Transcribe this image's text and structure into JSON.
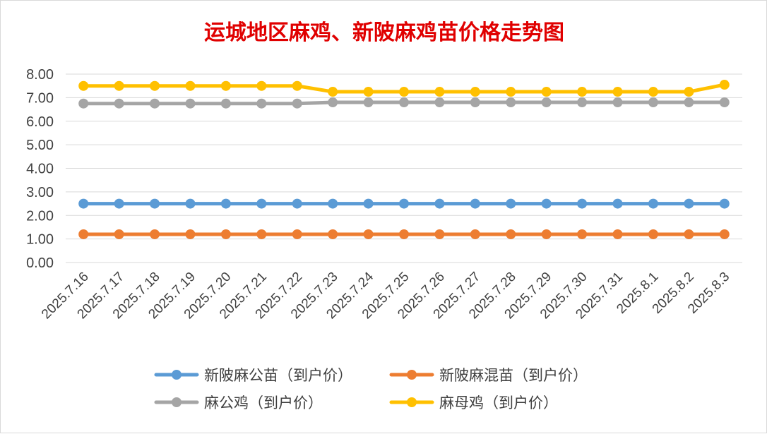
{
  "chart_data": {
    "type": "line",
    "title": "运城地区麻鸡、新陂麻鸡苗价格走势图",
    "xlabel": "",
    "ylabel": "",
    "ylim": [
      0,
      8
    ],
    "yticks": [
      "0.00",
      "1.00",
      "2.00",
      "3.00",
      "4.00",
      "5.00",
      "6.00",
      "7.00",
      "8.00"
    ],
    "grid": true,
    "legend_position": "bottom",
    "categories": [
      "2025.7.16",
      "2025.7.17",
      "2025.7.18",
      "2025.7.19",
      "2025.7.20",
      "2025.7.21",
      "2025.7.22",
      "2025.7.23",
      "2025.7.24",
      "2025.7.25",
      "2025.7.26",
      "2025.7.27",
      "2025.7.28",
      "2025.7.29",
      "2025.7.30",
      "2025.7.31",
      "2025.8.1",
      "2025.8.2",
      "2025.8.3"
    ],
    "series": [
      {
        "name": "新陂麻公苗（到户价）",
        "color": "#5b9bd5",
        "values": [
          2.5,
          2.5,
          2.5,
          2.5,
          2.5,
          2.5,
          2.5,
          2.5,
          2.5,
          2.5,
          2.5,
          2.5,
          2.5,
          2.5,
          2.5,
          2.5,
          2.5,
          2.5,
          2.5
        ]
      },
      {
        "name": "新陂麻混苗（到户价）",
        "color": "#ed7d31",
        "values": [
          1.2,
          1.2,
          1.2,
          1.2,
          1.2,
          1.2,
          1.2,
          1.2,
          1.2,
          1.2,
          1.2,
          1.2,
          1.2,
          1.2,
          1.2,
          1.2,
          1.2,
          1.2,
          1.2
        ]
      },
      {
        "name": "麻公鸡（到户价）",
        "color": "#a5a5a5",
        "values": [
          6.75,
          6.75,
          6.75,
          6.75,
          6.75,
          6.75,
          6.75,
          6.8,
          6.8,
          6.8,
          6.8,
          6.8,
          6.8,
          6.8,
          6.8,
          6.8,
          6.8,
          6.8,
          6.8
        ]
      },
      {
        "name": "麻母鸡（到户价）",
        "color": "#ffc000",
        "values": [
          7.5,
          7.5,
          7.5,
          7.5,
          7.5,
          7.5,
          7.5,
          7.25,
          7.25,
          7.25,
          7.25,
          7.25,
          7.25,
          7.25,
          7.25,
          7.25,
          7.25,
          7.25,
          7.55
        ]
      }
    ]
  }
}
